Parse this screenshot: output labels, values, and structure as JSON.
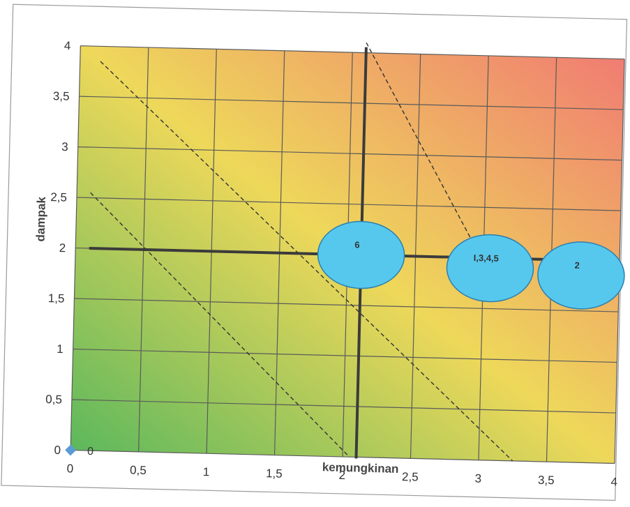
{
  "chart_data": {
    "type": "scatter",
    "title": "",
    "xlabel": "kemungkinan",
    "ylabel": "dampak",
    "xlim": [
      0,
      4
    ],
    "ylim": [
      0,
      4
    ],
    "x_ticks": [
      "0",
      "0,5",
      "1",
      "1,5",
      "2",
      "2,5",
      "3",
      "3,5",
      "4"
    ],
    "y_ticks": [
      "0",
      "0,5",
      "1",
      "1,5",
      "2",
      "2,5",
      "3",
      "3,5",
      "4"
    ],
    "grid": true,
    "background_gradient": {
      "low": "#5cb85c",
      "mid": "#eed85a",
      "high": "#f07c72"
    },
    "origin_point": {
      "x": 0,
      "y": 0,
      "label": "0",
      "color": "#5b9bd5"
    },
    "bubbles": [
      {
        "label": "6",
        "x": 2.1,
        "y": 2.0,
        "color": "#56c8ee"
      },
      {
        "label": "I,3,4,5",
        "x": 3.05,
        "y": 1.9,
        "color": "#56c8ee"
      },
      {
        "label": "2",
        "x": 3.72,
        "y": 1.85,
        "color": "#56c8ee"
      }
    ],
    "quadrant_lines": {
      "vertical_x": 2.1,
      "horizontal_y": 2.0
    },
    "dashed_lines": [
      {
        "x1": 0.1,
        "y1": 2.55,
        "x2": 2.05,
        "y2": 0
      },
      {
        "x1": 0.15,
        "y1": 3.85,
        "x2": 3.25,
        "y2": 0
      },
      {
        "x1": 2.1,
        "y1": 4.1,
        "x2": 3.15,
        "y2": 1.6
      }
    ]
  }
}
